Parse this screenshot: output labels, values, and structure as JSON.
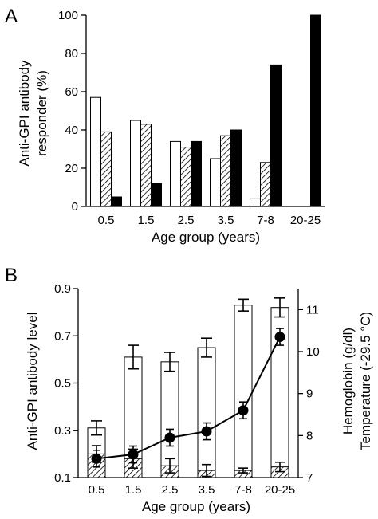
{
  "chart_data": [
    {
      "panel_label": "A",
      "type": "bar",
      "categories": [
        "0.5",
        "1.5",
        "2.5",
        "3.5",
        "7-8",
        "20-25"
      ],
      "series": [
        {
          "fill": "white",
          "values": [
            57,
            45,
            34,
            25,
            4,
            0
          ]
        },
        {
          "fill": "hatched",
          "values": [
            39,
            43,
            31,
            37,
            23,
            0
          ]
        },
        {
          "fill": "black",
          "values": [
            5,
            12,
            34,
            40,
            74,
            100
          ]
        }
      ],
      "xlabel": "Age group (years)",
      "ylabel": "Anti-GPI antibody responder (%)",
      "ylabel_lines": [
        "Anti-GPI antibody",
        "responder (%)"
      ],
      "ylim": [
        0,
        100
      ],
      "yticks": [
        0,
        20,
        40,
        60,
        80,
        100
      ]
    },
    {
      "panel_label": "B",
      "type": "bar",
      "categories": [
        "0.5",
        "1.5",
        "2.5",
        "3.5",
        "7-8",
        "20-25"
      ],
      "series": [
        {
          "fill": "white",
          "axis": "left",
          "values": [
            0.31,
            0.61,
            0.59,
            0.65,
            0.83,
            0.82
          ],
          "errors": [
            0.03,
            0.05,
            0.04,
            0.04,
            0.025,
            0.04
          ]
        },
        {
          "fill": "hatched",
          "axis": "left",
          "values": [
            0.2,
            0.18,
            0.15,
            0.13,
            0.13,
            0.145
          ],
          "errors": [
            0.035,
            0.04,
            0.03,
            0.025,
            0.01,
            0.02
          ]
        },
        {
          "type": "line",
          "marker": "filled-circle",
          "axis": "right",
          "values": [
            7.45,
            7.55,
            7.95,
            8.1,
            8.6,
            10.35
          ],
          "errors": [
            0.2,
            0.2,
            0.2,
            0.2,
            0.2,
            0.2
          ]
        }
      ],
      "xlabel": "Age group (years)",
      "ylabel": "Anti-GPI antibody level",
      "ylim": [
        0.1,
        0.9
      ],
      "yticks": [
        "0.1",
        "0.3",
        "0.5",
        "0.7",
        "0.9"
      ],
      "y2label_1": "Hemoglobin (g/dl)",
      "y2label_2": "Temperature (-29.5 °C)",
      "y2lim": [
        7,
        11.5
      ],
      "y2ticks": [
        "7",
        "8",
        "9",
        "10",
        "11"
      ]
    }
  ]
}
